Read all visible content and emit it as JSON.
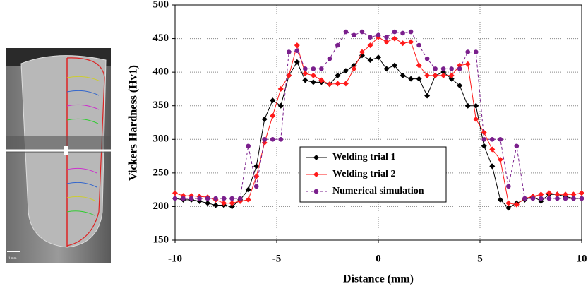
{
  "image": {
    "scale_label": "1 mm"
  },
  "chart_data": {
    "type": "line",
    "xlabel": "Distance (mm)",
    "ylabel": "Vickers Hardness (Hv1)",
    "x": [
      -10,
      -9.6,
      -9.2,
      -8.8,
      -8.4,
      -8,
      -7.6,
      -7.2,
      -6.8,
      -6.4,
      -6,
      -5.6,
      -5.2,
      -4.8,
      -4.4,
      -4,
      -3.6,
      -3.2,
      -2.8,
      -2.4,
      -2,
      -1.6,
      -1.2,
      -0.8,
      -0.4,
      0,
      0.4,
      0.8,
      1.2,
      1.6,
      2,
      2.4,
      2.8,
      3.2,
      3.6,
      4,
      4.4,
      4.8,
      5.2,
      5.6,
      6,
      6.4,
      6.8,
      7.2,
      7.6,
      8,
      8.4,
      8.8,
      9.2,
      9.6,
      10
    ],
    "series": [
      {
        "name": "Welding trial 1",
        "color": "#000000",
        "marker": "diamond",
        "linestyle": "solid",
        "values": [
          212,
          210,
          210,
          208,
          205,
          202,
          202,
          200,
          210,
          225,
          260,
          330,
          358,
          350,
          395,
          415,
          388,
          385,
          385,
          382,
          395,
          402,
          410,
          425,
          418,
          422,
          405,
          410,
          395,
          390,
          390,
          365,
          395,
          400,
          390,
          380,
          350,
          350,
          290,
          260,
          210,
          198,
          205,
          210,
          215,
          208,
          218,
          218,
          215,
          212,
          212
        ]
      },
      {
        "name": "Welding trial 2",
        "color": "#ff1a1a",
        "marker": "diamond",
        "linestyle": "solid",
        "values": [
          220,
          216,
          216,
          215,
          214,
          210,
          205,
          205,
          208,
          210,
          245,
          295,
          335,
          375,
          395,
          440,
          398,
          395,
          388,
          382,
          383,
          383,
          405,
          430,
          440,
          452,
          445,
          450,
          443,
          445,
          410,
          395,
          395,
          395,
          395,
          410,
          412,
          330,
          310,
          285,
          270,
          205,
          203,
          212,
          215,
          218,
          220,
          218,
          218,
          218,
          220
        ]
      },
      {
        "name": "Numerical simulation",
        "color": "#7a1f8c",
        "marker": "circle",
        "linestyle": "dashed",
        "values": [
          212,
          212,
          212,
          212,
          212,
          212,
          212,
          212,
          212,
          290,
          230,
          300,
          300,
          300,
          430,
          432,
          405,
          405,
          405,
          420,
          440,
          460,
          455,
          460,
          452,
          455,
          452,
          460,
          458,
          460,
          440,
          420,
          405,
          405,
          405,
          405,
          430,
          430,
          300,
          300,
          300,
          230,
          290,
          212,
          212,
          212,
          212,
          212,
          212,
          212,
          212
        ]
      }
    ],
    "xlim": [
      -10,
      10
    ],
    "xticks": [
      -10,
      -5,
      0,
      5,
      10
    ],
    "ylim": [
      150,
      500
    ],
    "yticks": [
      150,
      200,
      250,
      300,
      350,
      400,
      450,
      500
    ],
    "grid": true,
    "legend_position": "center"
  }
}
